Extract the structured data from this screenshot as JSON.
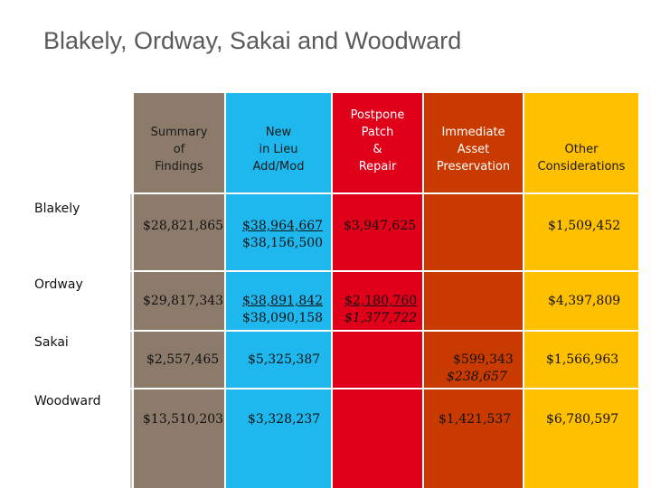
{
  "title": "Blakely, Ordway, Sakai and Woodward",
  "headers": {
    "summary": "Summary\nof\nFindings",
    "new_in_lieu": "New\nin Lieu\nAdd/Mod",
    "postpone": "Postpone\nPatch\n&\nRepair",
    "immediate": "Immediate\nAsset\nPreservation",
    "other": "Other\nConsiderations"
  },
  "rows": [
    {
      "label": "Blakely",
      "summary": "$28,821,865",
      "new_a": "$38,964,667",
      "new_b": "$38,156,500",
      "postpone": "$3,947,625",
      "other": "$1,509,452"
    },
    {
      "label": "Ordway",
      "summary": "$29,817,343",
      "new_a": "$38,891,842",
      "new_b": "$38,090,158",
      "postpone_a": "$2,180,760",
      "postpone_b": "$1,377,722",
      "other": "$4,397,809"
    },
    {
      "label": "Sakai",
      "summary": "$2,557,465",
      "new_a": "$5,325,387",
      "immediate_a": "$599,343",
      "immediate_b": "$238,657",
      "other": "$1,566,963"
    },
    {
      "label": "Woodward",
      "summary": "$13,510,203",
      "new_a": "$3,328,237",
      "immediate_a": "$1,421,537",
      "other": "$6,780,597"
    }
  ],
  "colors": {
    "summary": "#8c7b6b",
    "new_in_lieu": "#1fb8ee",
    "postpone": "#e0001a",
    "immediate": "#c93a00",
    "other": "#ffc000"
  }
}
